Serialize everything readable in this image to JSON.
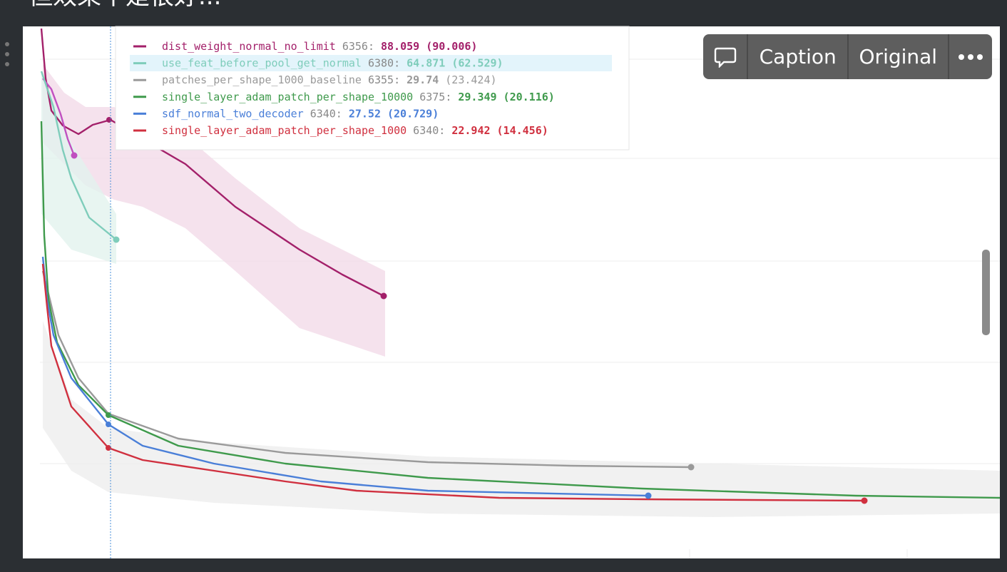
{
  "title": "但效果不是很好...",
  "toolbar": {
    "caption": "Caption",
    "original": "Original"
  },
  "legend": [
    {
      "name": "dist_weight_normal_no_limit",
      "step": "6356:",
      "value": "88.059",
      "raw": "(90.006)",
      "color": "#a3206a"
    },
    {
      "name": "use_feat_before_pool_get_normal",
      "step": "6380:",
      "value": "64.871",
      "raw": "(62.529)",
      "color": "#7fcdbb"
    },
    {
      "name": "patches_per_shape_1000_baseline",
      "step": "6355:",
      "value": "29.74",
      "raw": "(23.424)",
      "color": "#9a9a9a"
    },
    {
      "name": "single_layer_adam_patch_per_shape_10000",
      "step": "6375:",
      "value": "29.349",
      "raw": "(20.116)",
      "color": "#3f9a4c"
    },
    {
      "name": "sdf_normal_two_decoder",
      "step": "6340:",
      "value": "27.52",
      "raw": "(20.729)",
      "color": "#4a7fd8"
    },
    {
      "name": "single_layer_adam_patch_per_shape_1000",
      "step": "6340:",
      "value": "22.942",
      "raw": "(14.456)",
      "color": "#d0303f"
    }
  ]
}
